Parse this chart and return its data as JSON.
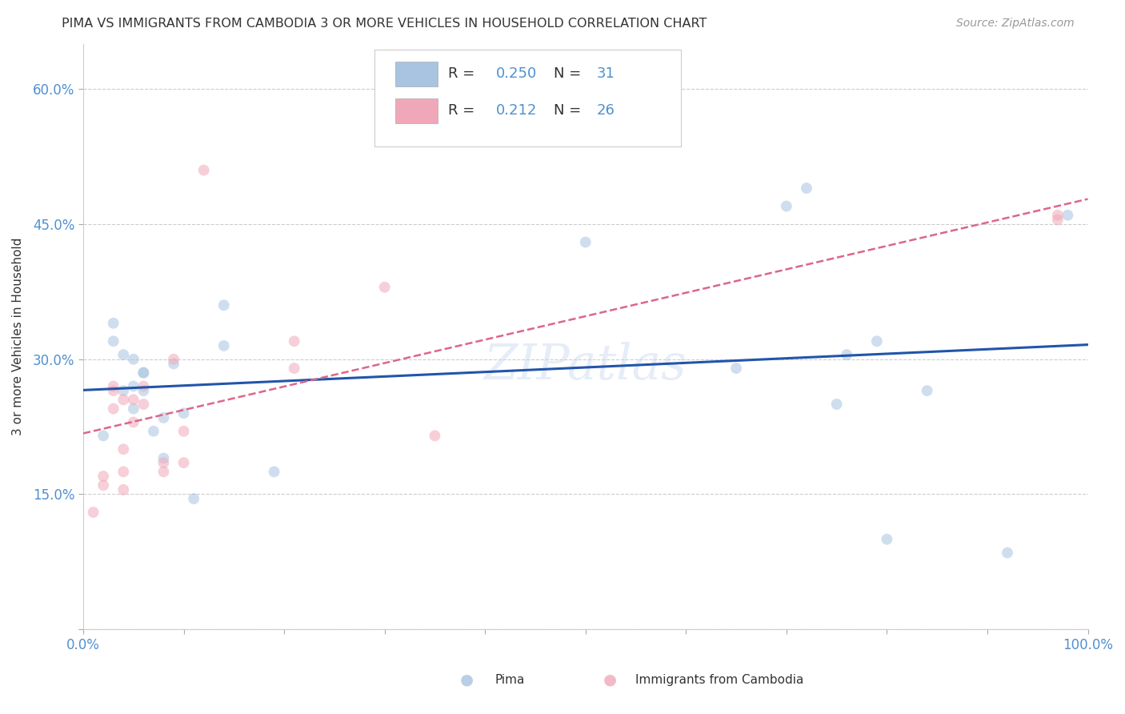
{
  "title": "PIMA VS IMMIGRANTS FROM CAMBODIA 3 OR MORE VEHICLES IN HOUSEHOLD CORRELATION CHART",
  "source": "Source: ZipAtlas.com",
  "ylabel": "3 or more Vehicles in Household",
  "xlim": [
    0.0,
    1.0
  ],
  "ylim": [
    0.0,
    0.65
  ],
  "xticks": [
    0.0,
    0.1,
    0.2,
    0.3,
    0.4,
    0.5,
    0.6,
    0.7,
    0.8,
    0.9,
    1.0
  ],
  "xtick_labels": [
    "0.0%",
    "",
    "",
    "",
    "",
    "",
    "",
    "",
    "",
    "",
    "100.0%"
  ],
  "yticks": [
    0.0,
    0.15,
    0.3,
    0.45,
    0.6
  ],
  "ytick_labels": [
    "",
    "15.0%",
    "30.0%",
    "45.0%",
    "60.0%"
  ],
  "legend_R1": "0.250",
  "legend_N1": "31",
  "legend_R2": "0.212",
  "legend_N2": "26",
  "pima_color": "#a8c4e0",
  "cambodia_color": "#f0a8b8",
  "pima_line_color": "#2255aa",
  "cambodia_line_color": "#dd6688",
  "watermark": "ZIPatlas",
  "pima_x": [
    0.02,
    0.03,
    0.03,
    0.04,
    0.04,
    0.05,
    0.05,
    0.05,
    0.06,
    0.06,
    0.06,
    0.07,
    0.08,
    0.08,
    0.09,
    0.1,
    0.11,
    0.14,
    0.14,
    0.19,
    0.5,
    0.65,
    0.7,
    0.72,
    0.75,
    0.76,
    0.79,
    0.8,
    0.84,
    0.92,
    0.98
  ],
  "pima_y": [
    0.215,
    0.32,
    0.34,
    0.265,
    0.305,
    0.245,
    0.27,
    0.3,
    0.265,
    0.285,
    0.285,
    0.22,
    0.19,
    0.235,
    0.295,
    0.24,
    0.145,
    0.315,
    0.36,
    0.175,
    0.43,
    0.29,
    0.47,
    0.49,
    0.25,
    0.305,
    0.32,
    0.1,
    0.265,
    0.085,
    0.46
  ],
  "cambodia_x": [
    0.01,
    0.02,
    0.02,
    0.03,
    0.03,
    0.03,
    0.04,
    0.04,
    0.04,
    0.04,
    0.05,
    0.05,
    0.06,
    0.06,
    0.08,
    0.08,
    0.09,
    0.1,
    0.1,
    0.12,
    0.21,
    0.21,
    0.3,
    0.35,
    0.97,
    0.97
  ],
  "cambodia_y": [
    0.13,
    0.16,
    0.17,
    0.245,
    0.265,
    0.27,
    0.155,
    0.175,
    0.2,
    0.255,
    0.23,
    0.255,
    0.25,
    0.27,
    0.175,
    0.185,
    0.3,
    0.185,
    0.22,
    0.51,
    0.32,
    0.29,
    0.38,
    0.215,
    0.455,
    0.46
  ],
  "grid_color": "#cccccc",
  "background_color": "#ffffff",
  "title_color": "#333333",
  "axis_color": "#5090d0",
  "marker_size": 100,
  "marker_alpha": 0.55,
  "legend_patch_color1": "#a8c4e0",
  "legend_patch_color2": "#f0a8b8",
  "bottom_legend_labels": [
    "Pima",
    "Immigrants from Cambodia"
  ]
}
